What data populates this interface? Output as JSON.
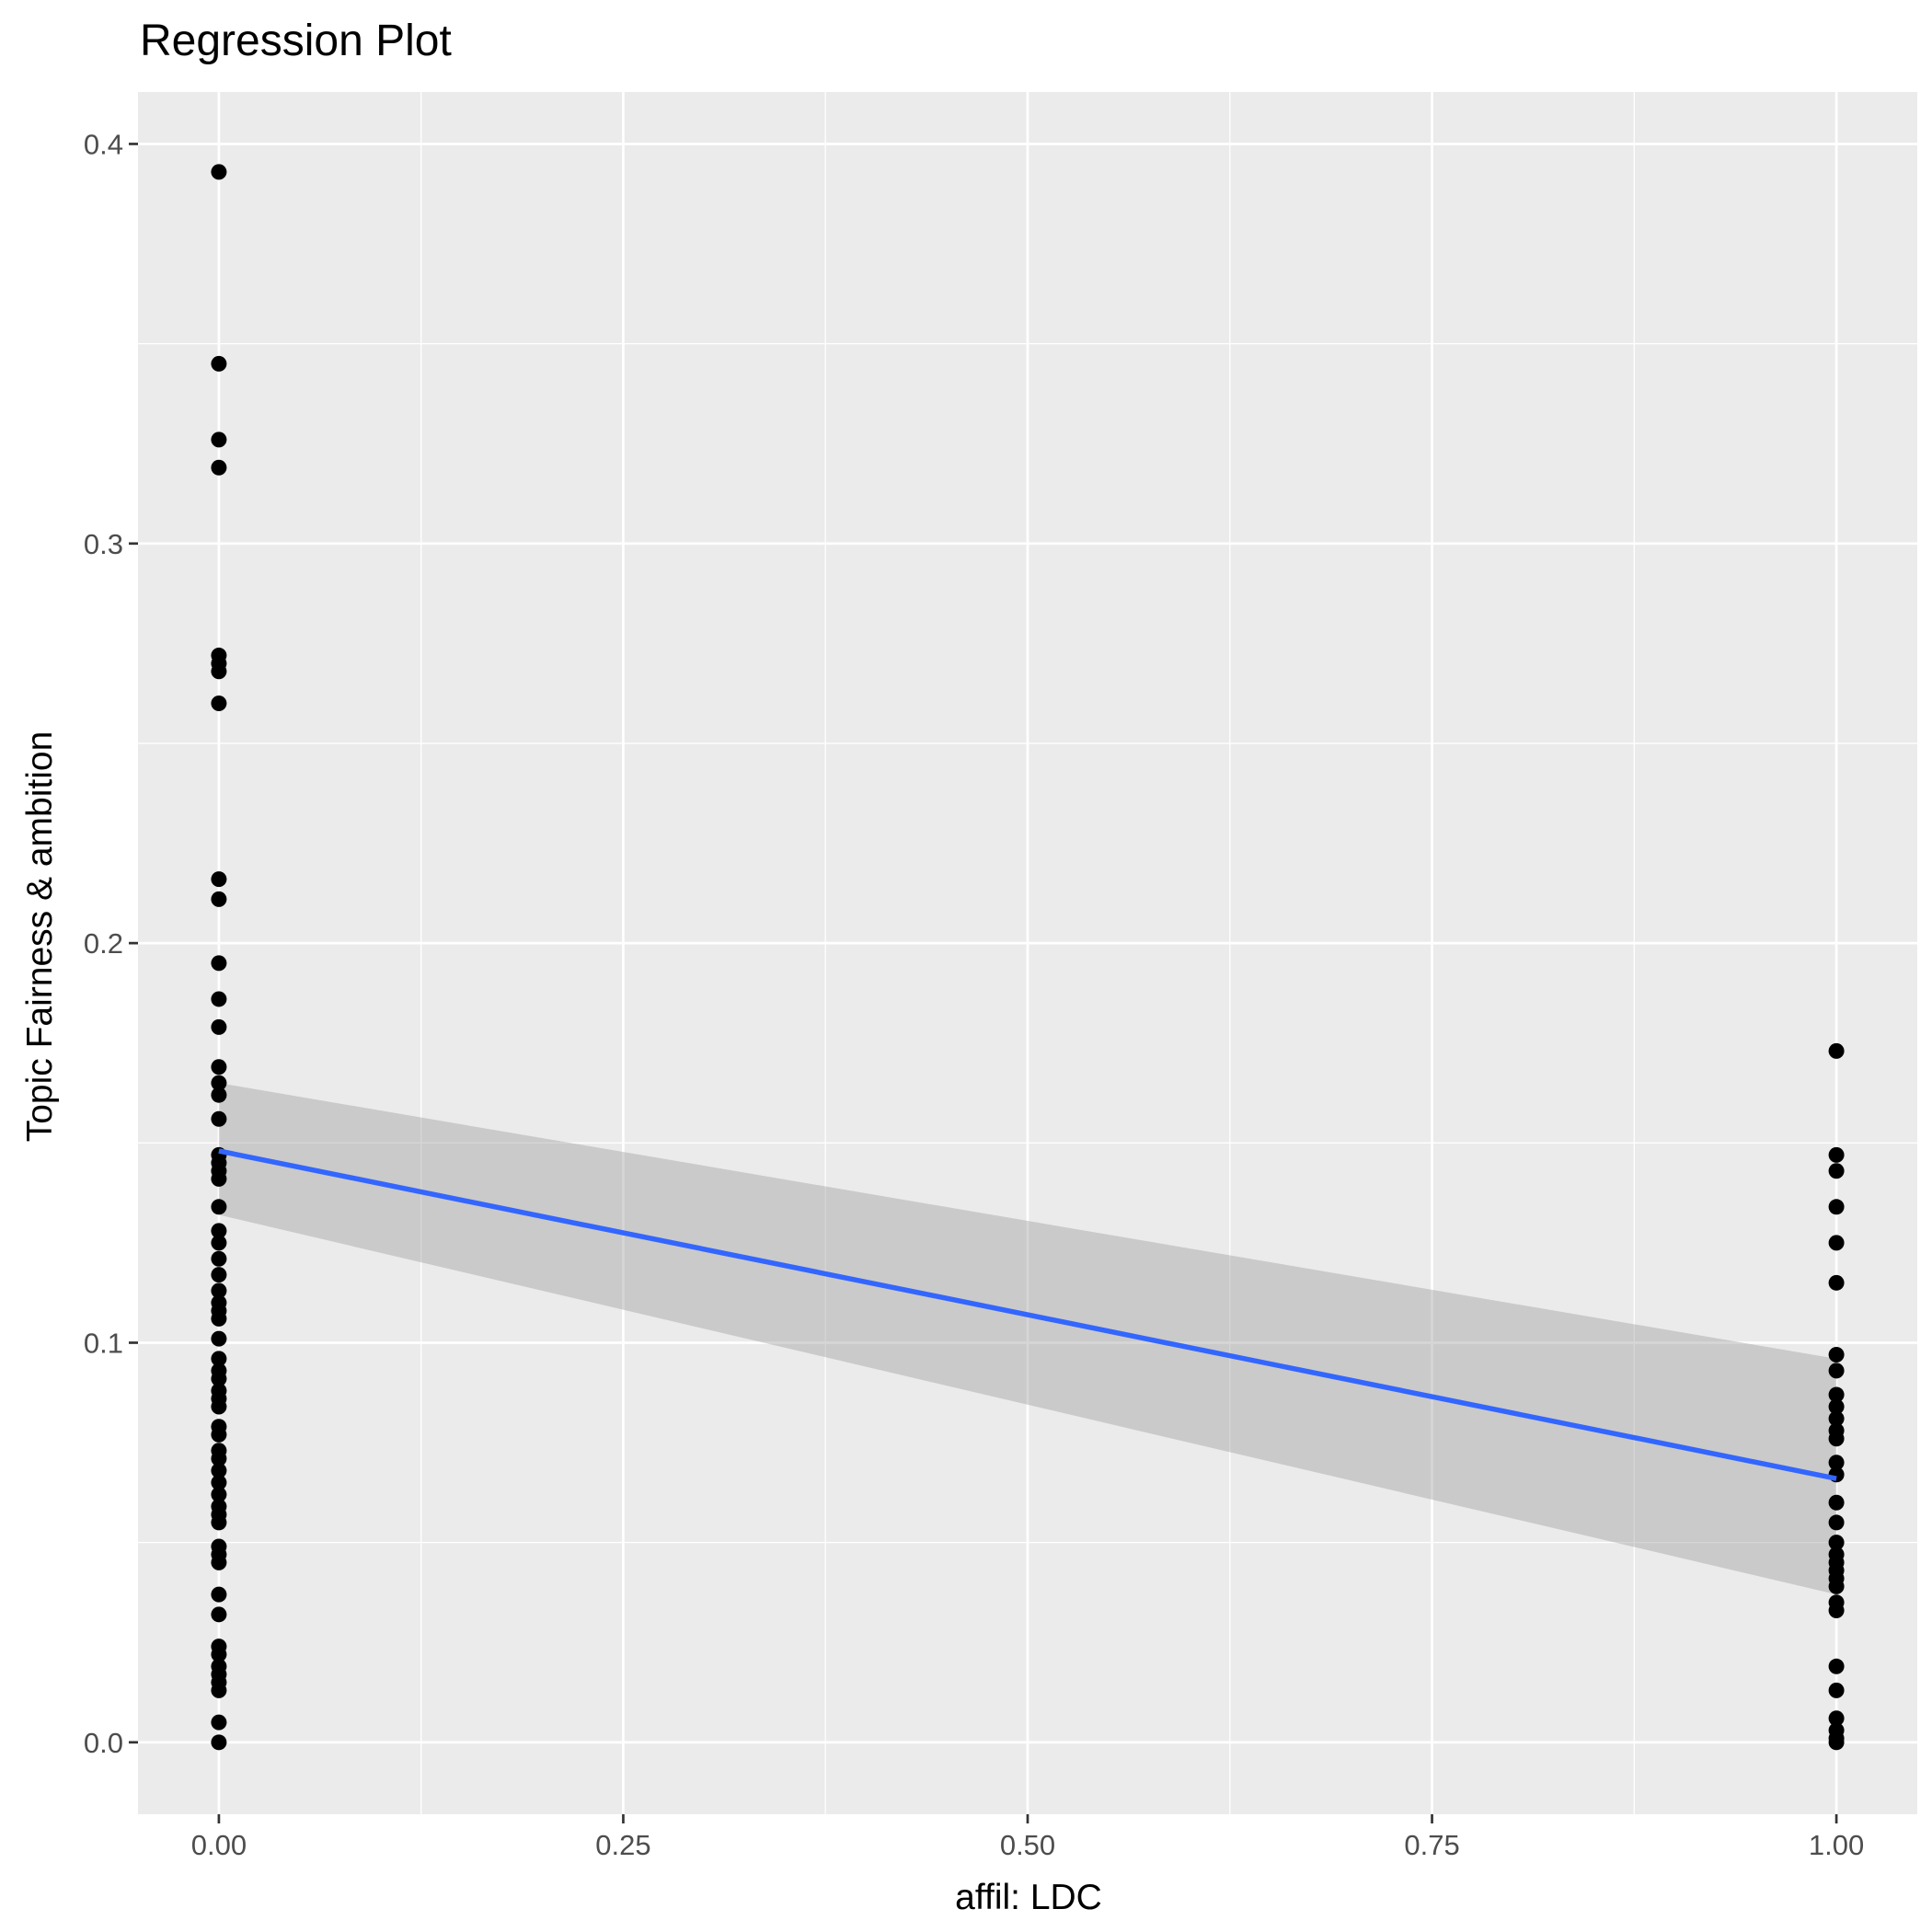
{
  "chart_data": {
    "type": "scatter",
    "title": "Regression Plot",
    "xlabel": "affil: LDC",
    "ylabel": "Topic Fairness & ambition",
    "xlim": [
      -0.05,
      1.05
    ],
    "ylim": [
      -0.018,
      0.413
    ],
    "x_ticks": [
      0.0,
      0.25,
      0.5,
      0.75,
      1.0
    ],
    "x_tick_labels": [
      "0.00",
      "0.25",
      "0.50",
      "0.75",
      "1.00"
    ],
    "y_ticks": [
      0.0,
      0.1,
      0.2,
      0.3,
      0.4
    ],
    "y_tick_labels": [
      "0.0",
      "0.1",
      "0.2",
      "0.3",
      "0.4"
    ],
    "grid": true,
    "colors": {
      "panel": "#ebebeb",
      "grid": "#ffffff",
      "points": "#000000",
      "fit_line": "#3366ff",
      "band": "#999999"
    },
    "series": [
      {
        "x": 0,
        "y": [
          0.393,
          0.345,
          0.326,
          0.319,
          0.272,
          0.27,
          0.268,
          0.26,
          0.216,
          0.211,
          0.195,
          0.186,
          0.179,
          0.169,
          0.165,
          0.162,
          0.156,
          0.147,
          0.145,
          0.143,
          0.141,
          0.134,
          0.128,
          0.125,
          0.121,
          0.117,
          0.113,
          0.11,
          0.108,
          0.106,
          0.101,
          0.096,
          0.093,
          0.091,
          0.088,
          0.086,
          0.084,
          0.079,
          0.077,
          0.073,
          0.071,
          0.068,
          0.065,
          0.062,
          0.059,
          0.057,
          0.055,
          0.049,
          0.047,
          0.045,
          0.037,
          0.032,
          0.024,
          0.022,
          0.019,
          0.017,
          0.015,
          0.013,
          0.005,
          0.0
        ]
      },
      {
        "x": 1,
        "y": [
          0.173,
          0.147,
          0.143,
          0.134,
          0.125,
          0.115,
          0.097,
          0.093,
          0.087,
          0.084,
          0.081,
          0.078,
          0.076,
          0.07,
          0.067,
          0.06,
          0.055,
          0.05,
          0.047,
          0.045,
          0.043,
          0.041,
          0.039,
          0.035,
          0.033,
          0.019,
          0.013,
          0.006,
          0.003,
          0.001,
          0.0
        ]
      }
    ],
    "regression": {
      "intercept": 0.148,
      "slope": -0.082,
      "band_lower": [
        0.132,
        0.037
      ],
      "band_upper": [
        0.165,
        0.096
      ]
    }
  }
}
